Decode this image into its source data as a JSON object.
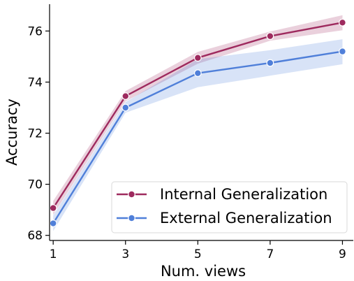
{
  "chart_data": {
    "type": "line",
    "title": "",
    "xlabel": "Num. views",
    "ylabel": "Accuracy",
    "x": [
      1,
      3,
      5,
      7,
      9
    ],
    "xticks": [
      1,
      3,
      5,
      7,
      9
    ],
    "yticks": [
      68,
      70,
      72,
      74,
      76
    ],
    "xlim": [
      0.9,
      9.3
    ],
    "ylim": [
      67.8,
      77.05
    ],
    "grid": false,
    "legend_position": "lower-right",
    "series": [
      {
        "name": "Internal Generalization",
        "color": "#9e2a5e",
        "values": [
          69.07,
          73.45,
          74.95,
          75.8,
          76.33
        ],
        "lower": [
          68.8,
          73.25,
          74.72,
          75.62,
          76.03
        ],
        "upper": [
          69.35,
          73.65,
          75.18,
          75.98,
          76.62
        ]
      },
      {
        "name": "External Generalization",
        "color": "#4f7fd9",
        "values": [
          68.47,
          73.0,
          74.35,
          74.75,
          75.2
        ],
        "lower": [
          68.17,
          72.8,
          73.8,
          74.25,
          74.7
        ],
        "upper": [
          68.78,
          73.22,
          74.9,
          75.25,
          75.68
        ]
      }
    ]
  }
}
